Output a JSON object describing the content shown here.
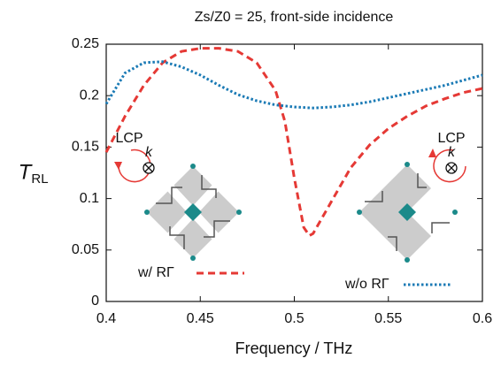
{
  "chart_data": {
    "type": "line",
    "title": "Zs/Z0 = 25, front-side incidence",
    "x_label": "Frequency / THz",
    "y_label": "T",
    "y_label_sub": "RL",
    "annotations": [
      "LCP",
      "k",
      "LCP",
      "k"
    ],
    "xlim": [
      0.4,
      0.6
    ],
    "xticks": [
      0.4,
      0.45,
      0.5,
      0.55,
      0.6
    ],
    "ylim": [
      0,
      0.25
    ],
    "yticks": [
      0,
      0.05,
      0.1,
      0.15,
      0.2,
      0.25
    ],
    "grid": false,
    "series": [
      {
        "name": "w/ RΓ",
        "color": "#e53935",
        "dash": "dashed",
        "x": [
          0.4,
          0.41,
          0.42,
          0.43,
          0.44,
          0.45,
          0.46,
          0.47,
          0.48,
          0.49,
          0.495,
          0.5,
          0.505,
          0.508,
          0.51,
          0.52,
          0.53,
          0.54,
          0.55,
          0.56,
          0.57,
          0.58,
          0.59,
          0.6
        ],
        "values": [
          0.145,
          0.18,
          0.21,
          0.232,
          0.243,
          0.246,
          0.246,
          0.243,
          0.232,
          0.205,
          0.175,
          0.12,
          0.072,
          0.064,
          0.066,
          0.098,
          0.13,
          0.152,
          0.168,
          0.18,
          0.19,
          0.197,
          0.203,
          0.207
        ]
      },
      {
        "name": "w/o RΓ",
        "color": "#1a7ab5",
        "dash": "dotted",
        "x": [
          0.4,
          0.41,
          0.42,
          0.43,
          0.44,
          0.45,
          0.46,
          0.47,
          0.48,
          0.49,
          0.5,
          0.51,
          0.52,
          0.53,
          0.54,
          0.55,
          0.56,
          0.57,
          0.58,
          0.59,
          0.6
        ],
        "values": [
          0.192,
          0.222,
          0.232,
          0.233,
          0.228,
          0.22,
          0.21,
          0.201,
          0.195,
          0.191,
          0.189,
          0.188,
          0.189,
          0.191,
          0.194,
          0.198,
          0.202,
          0.206,
          0.21,
          0.215,
          0.22
        ]
      }
    ]
  }
}
